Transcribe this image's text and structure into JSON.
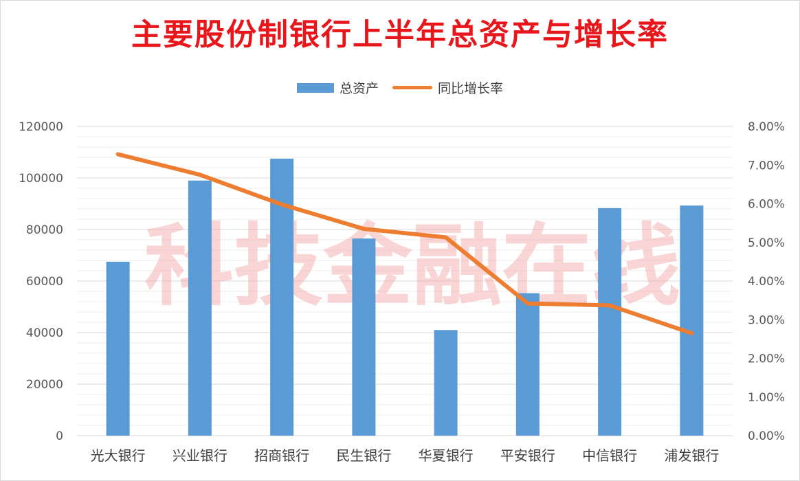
{
  "chart_data": {
    "type": "bar",
    "title": "主要股份制银行上半年总资产与增长率",
    "watermark": "科技金融在线",
    "categories": [
      "光大银行",
      "兴业银行",
      "招商银行",
      "民生银行",
      "华夏银行",
      "平安银行",
      "中信银行",
      "浦发银行"
    ],
    "series": [
      {
        "name": "总资产",
        "type": "bar",
        "axis": "left",
        "color": "#5b9bd5",
        "values": [
          67500,
          99000,
          107500,
          76500,
          41000,
          55300,
          88300,
          89300
        ]
      },
      {
        "name": "同比增长率",
        "type": "line",
        "axis": "right",
        "color": "#ed7d31",
        "values": [
          7.28,
          6.75,
          5.98,
          5.35,
          5.13,
          3.42,
          3.37,
          2.65
        ]
      }
    ],
    "y_left": {
      "ylim": [
        0,
        120000
      ],
      "ticks": [
        0,
        20000,
        40000,
        60000,
        80000,
        100000,
        120000
      ],
      "tick_labels": [
        "0",
        "20000",
        "40000",
        "60000",
        "80000",
        "100000",
        "120000"
      ]
    },
    "y_right": {
      "ylim": [
        0,
        8
      ],
      "ticks": [
        0,
        1,
        2,
        3,
        4,
        5,
        6,
        7,
        8
      ],
      "tick_labels": [
        "0.00%",
        "1.00%",
        "2.00%",
        "3.00%",
        "4.00%",
        "5.00%",
        "6.00%",
        "7.00%",
        "8.00%"
      ]
    },
    "grid": true,
    "minor_grid": true,
    "legend": "top-center"
  }
}
